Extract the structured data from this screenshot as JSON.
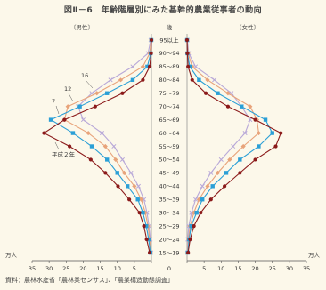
{
  "title": "図Ⅱ－6　年齢階層別にみた基幹的農業従事者の動向",
  "source": "資料：農林水産省「農林業センサス」、「農業構造動態調査」",
  "chart_data": {
    "type": "line",
    "title": "図Ⅱ－6　年齢階層別にみた基幹的農業従事者の動向",
    "left_panel_label": "〔男性〕",
    "right_panel_label": "〔女性〕",
    "center_header": "歳",
    "unit_label": "万人",
    "age_groups": [
      "15～19",
      "20～24",
      "25～29",
      "30～34",
      "35～39",
      "40～44",
      "45～49",
      "50～54",
      "55～59",
      "60～64",
      "65～69",
      "70～74",
      "75～79",
      "80～84",
      "85～89",
      "90～94",
      "95以上"
    ],
    "x_ticks": [
      35,
      30,
      25,
      20,
      15,
      10,
      5,
      0,
      5,
      10,
      15,
      20,
      25,
      30,
      35
    ],
    "x_range": [
      0,
      35
    ],
    "series": [
      {
        "name": "平成２年",
        "color": "#8b1a1a",
        "marker": "circle",
        "male": [
          0.5,
          1.4,
          2.2,
          3.5,
          6.5,
          9.8,
          13.5,
          17.8,
          24.0,
          31.5,
          25.5,
          16.5,
          8.5,
          2.5,
          0.5,
          0.1,
          0.0
        ],
        "female": [
          0.3,
          0.9,
          2.0,
          4.0,
          7.0,
          11.0,
          15.5,
          20.0,
          26.0,
          27.5,
          20.0,
          12.0,
          5.5,
          1.5,
          0.3,
          0.1,
          0.0
        ]
      },
      {
        "name": "7",
        "color": "#2a9fd6",
        "marker": "square",
        "male": [
          0.3,
          0.8,
          1.5,
          2.5,
          4.0,
          7.0,
          10.0,
          13.0,
          17.5,
          23.0,
          29.5,
          21.0,
          13.0,
          5.5,
          1.2,
          0.2,
          0.0
        ],
        "female": [
          0.2,
          0.6,
          1.2,
          2.8,
          4.5,
          7.5,
          11.5,
          15.5,
          21.0,
          25.0,
          23.0,
          16.0,
          9.0,
          3.5,
          0.8,
          0.1,
          0.0
        ]
      },
      {
        "name": "12",
        "color": "#e8a37a",
        "marker": "diamond",
        "male": [
          0.2,
          0.5,
          1.0,
          1.8,
          3.0,
          5.0,
          8.0,
          10.5,
          13.5,
          18.5,
          25.5,
          24.5,
          16.0,
          9.0,
          2.5,
          0.5,
          0.1
        ],
        "female": [
          0.1,
          0.4,
          0.9,
          2.0,
          3.5,
          6.0,
          9.0,
          12.5,
          16.5,
          21.0,
          20.5,
          18.5,
          12.0,
          6.0,
          1.5,
          0.3,
          0.0
        ]
      },
      {
        "name": "16",
        "color": "#b8a8d8",
        "marker": "x",
        "male": [
          0.1,
          0.3,
          0.7,
          1.3,
          2.2,
          3.8,
          6.0,
          8.5,
          11.0,
          14.5,
          20.0,
          21.5,
          17.5,
          12.0,
          5.5,
          1.0,
          0.2
        ],
        "female": [
          0.1,
          0.2,
          0.5,
          1.3,
          2.5,
          4.5,
          7.0,
          10.0,
          13.5,
          17.0,
          18.5,
          16.0,
          13.0,
          8.0,
          2.5,
          0.5,
          0.1
        ]
      }
    ]
  }
}
